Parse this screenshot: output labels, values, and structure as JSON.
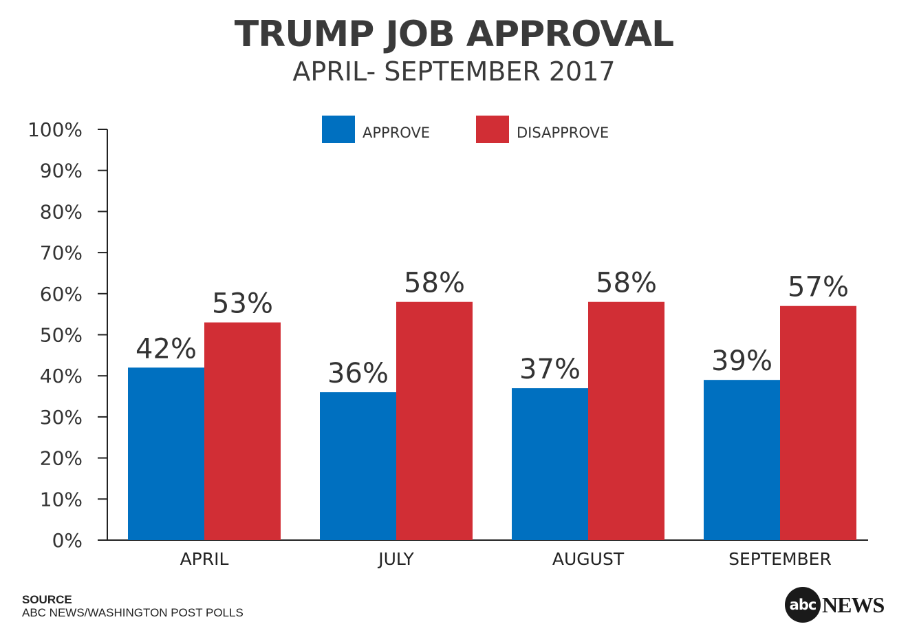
{
  "chart_data": {
    "type": "bar",
    "title": "TRUMP JOB APPROVAL",
    "subtitle": "APRIL- SEPTEMBER 2017",
    "categories": [
      "APRIL",
      "JULY",
      "AUGUST",
      "SEPTEMBER"
    ],
    "series": [
      {
        "name": "APPROVE",
        "color": "#0070c0",
        "values": [
          42,
          36,
          37,
          39
        ],
        "labels": [
          "42%",
          "36%",
          "37%",
          "39%"
        ]
      },
      {
        "name": "DISAPPROVE",
        "color": "#d12e35",
        "values": [
          53,
          58,
          58,
          57
        ],
        "labels": [
          "53%",
          "58%",
          "58%",
          "57%"
        ]
      }
    ],
    "ylim": [
      0,
      100
    ],
    "yticks": [
      "0%",
      "10%",
      "20%",
      "30%",
      "40%",
      "50%",
      "60%",
      "70%",
      "80%",
      "90%",
      "100%"
    ],
    "grid": false,
    "legend": "top-center"
  },
  "source": {
    "heading": "SOURCE",
    "text": "ABC NEWS/WASHINGTON POST POLLS"
  },
  "logo": {
    "mark": "abc",
    "word": "NEWS"
  }
}
